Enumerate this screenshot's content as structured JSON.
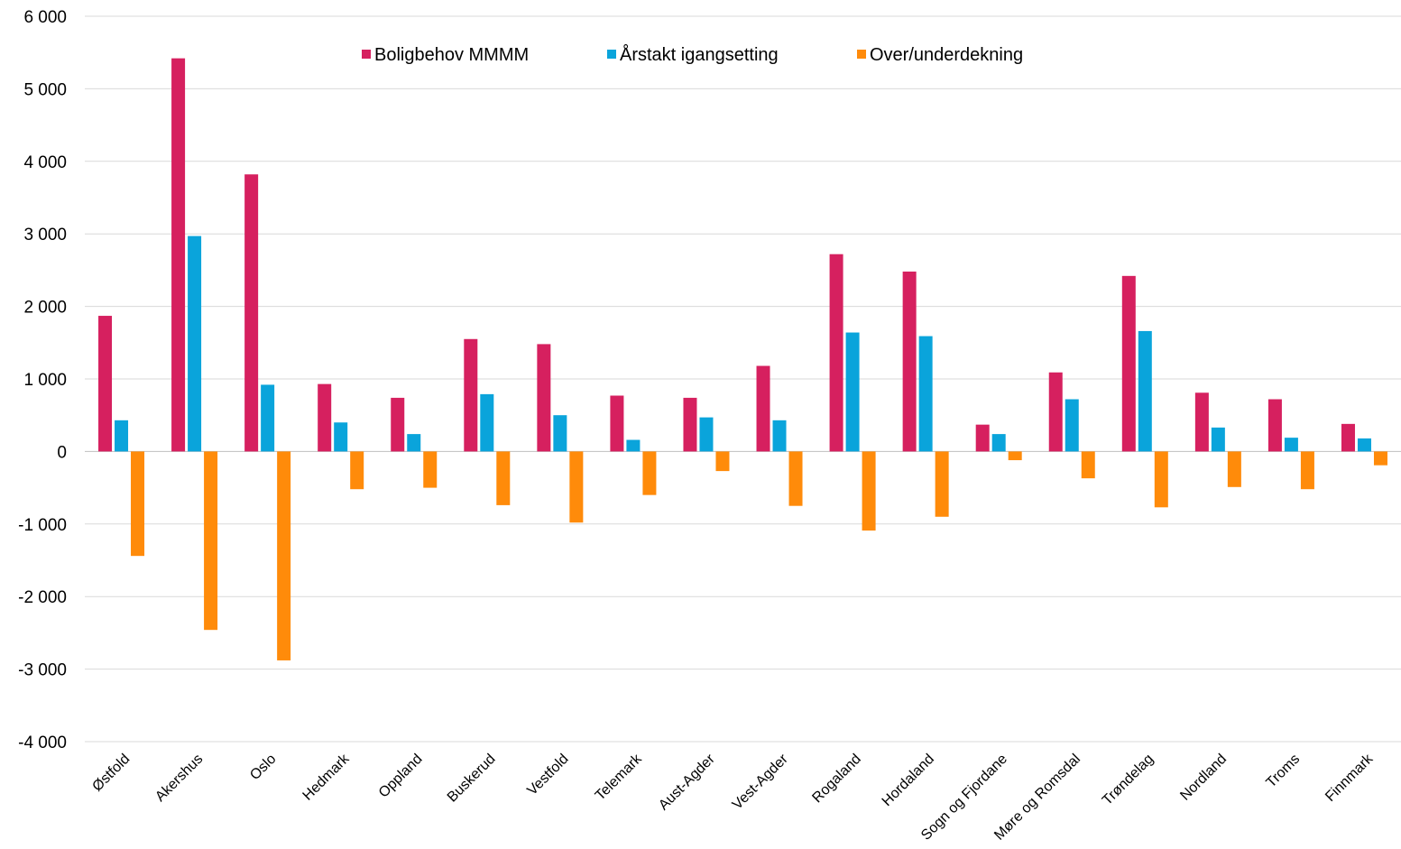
{
  "chart_data": {
    "type": "bar",
    "categories": [
      "Østfold",
      "Akershus",
      "Oslo",
      "Hedmark",
      "Oppland",
      "Buskerud",
      "Vestfold",
      "Telemark",
      "Aust-Agder",
      "Vest-Agder",
      "Rogaland",
      "Hordaland",
      "Sogn og Fjordane",
      "Møre og Romsdal",
      "Trøndelag",
      "Nordland",
      "Troms",
      "Finnmark"
    ],
    "series": [
      {
        "name": "Boligbehov MMMM",
        "color": "#D6205F",
        "values": [
          1870,
          5420,
          3820,
          930,
          740,
          1550,
          1480,
          770,
          740,
          1180,
          2720,
          2480,
          370,
          1090,
          2420,
          810,
          720,
          380
        ]
      },
      {
        "name": "Årstakt igangsetting",
        "color": "#0AA4DB",
        "values": [
          430,
          2970,
          920,
          400,
          240,
          790,
          500,
          160,
          470,
          430,
          1640,
          1590,
          240,
          720,
          1660,
          330,
          190,
          180
        ]
      },
      {
        "name": "Over/underdekning",
        "color": "#FF8B0A",
        "values": [
          -1440,
          -2460,
          -2880,
          -520,
          -500,
          -740,
          -980,
          -600,
          -270,
          -750,
          -1090,
          -900,
          -120,
          -370,
          -770,
          -490,
          -520,
          -190
        ]
      }
    ],
    "ylim": [
      -4000,
      6000
    ],
    "yticks": [
      6000,
      5000,
      4000,
      3000,
      2000,
      1000,
      0,
      -1000,
      -2000,
      -3000,
      -4000
    ],
    "ytick_labels": [
      "6 000",
      "5 000",
      "4 000",
      "3 000",
      "2 000",
      "1 000",
      "0",
      "-1 000",
      "-2 000",
      "-3 000",
      "-4 000"
    ],
    "title": "",
    "xlabel": "",
    "ylabel": "",
    "grid": true,
    "legend_position": "top"
  }
}
